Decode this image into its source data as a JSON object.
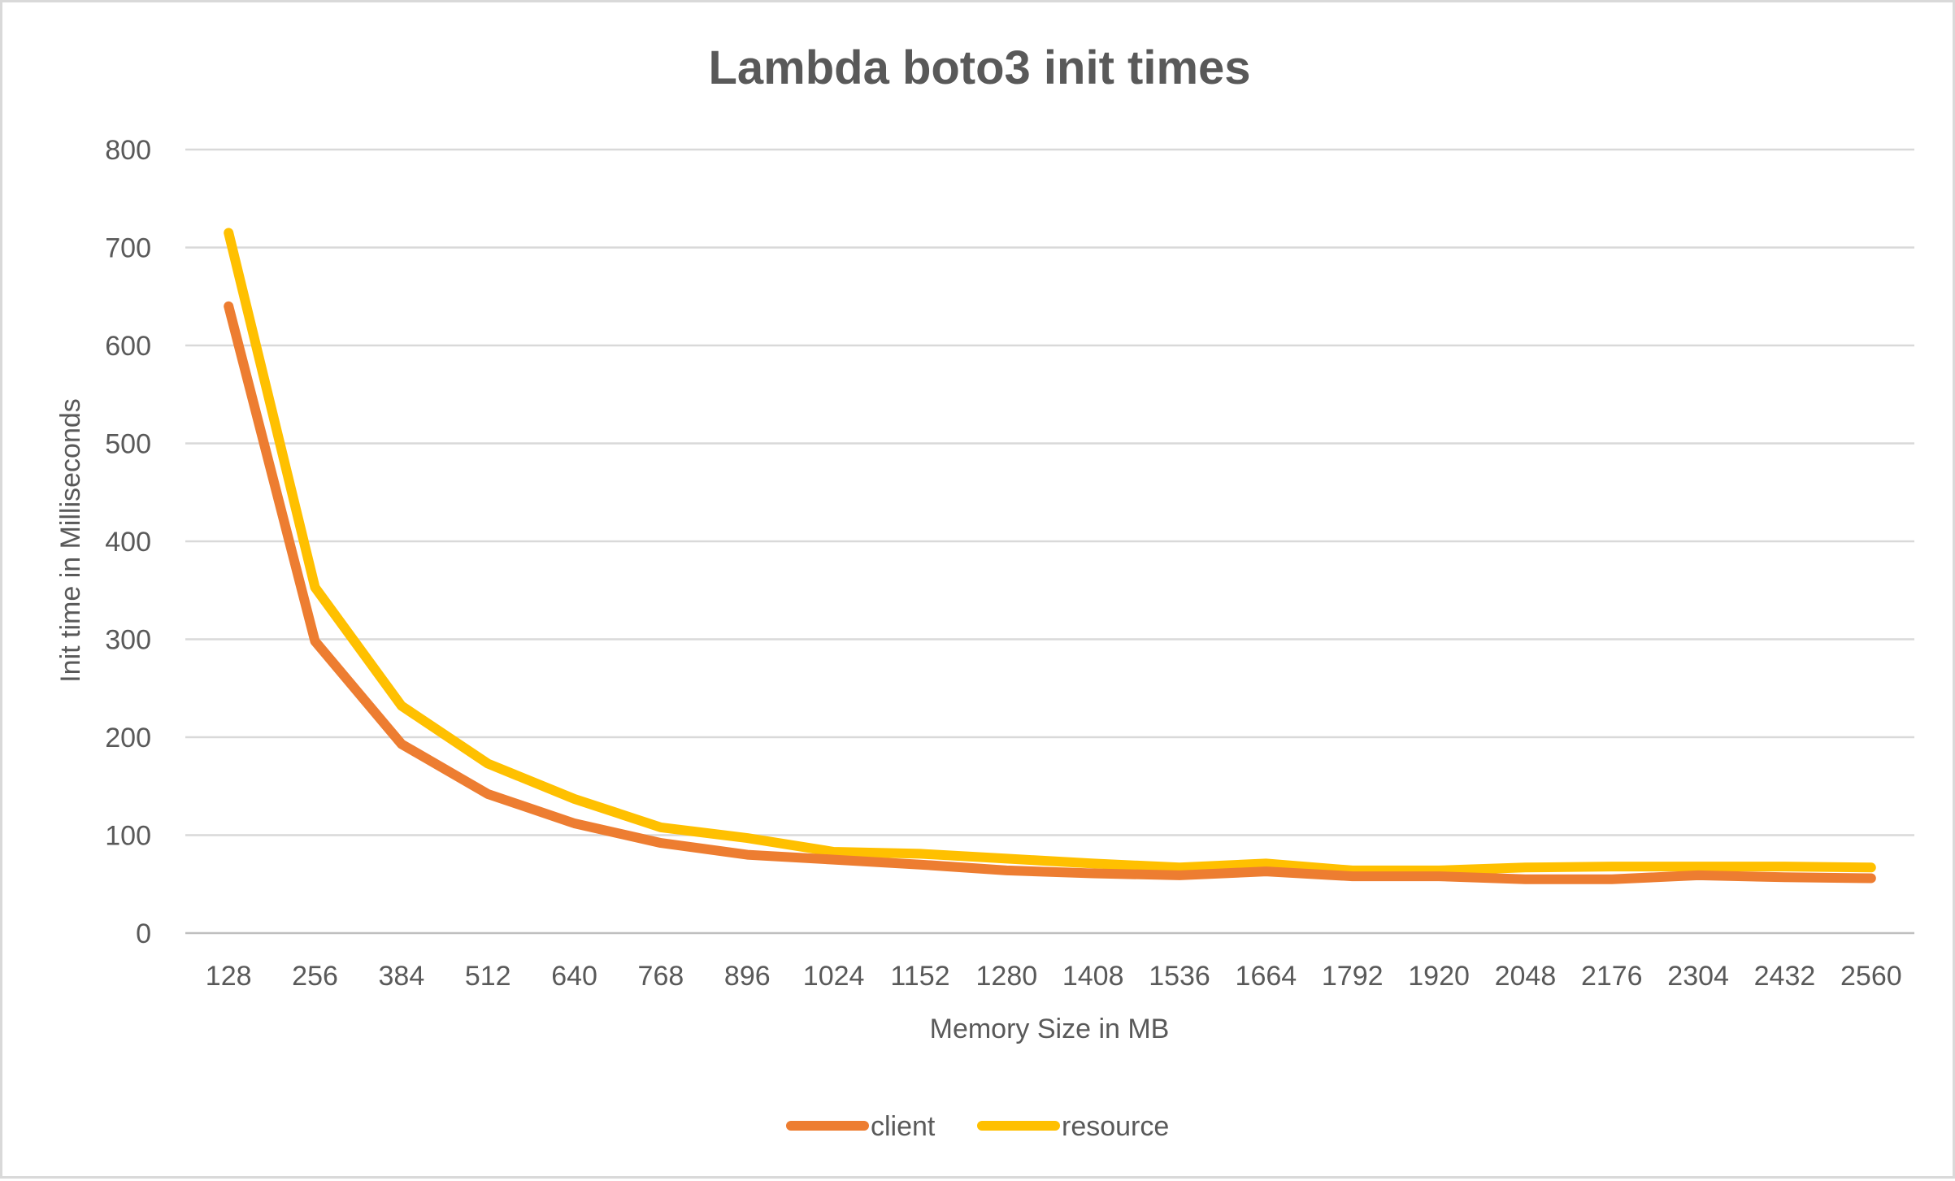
{
  "chart_data": {
    "type": "line",
    "title": "Lambda boto3 init times",
    "xlabel": "Memory Size in MB",
    "ylabel": "Init time in Milliseconds",
    "categories": [
      "128",
      "256",
      "384",
      "512",
      "640",
      "768",
      "896",
      "1024",
      "1152",
      "1280",
      "1408",
      "1536",
      "1664",
      "1792",
      "1920",
      "2048",
      "2176",
      "2304",
      "2432",
      "2560"
    ],
    "ylim": [
      0,
      800
    ],
    "yticks": [
      0,
      100,
      200,
      300,
      400,
      500,
      600,
      700,
      800
    ],
    "grid": true,
    "legend_position": "bottom",
    "series": [
      {
        "name": "client",
        "color": "#ED7D31",
        "values": [
          640,
          298,
          193,
          142,
          112,
          92,
          80,
          75,
          70,
          64,
          61,
          59,
          63,
          58,
          58,
          55,
          55,
          59,
          57,
          56
        ]
      },
      {
        "name": "resource",
        "color": "#FFC000",
        "values": [
          715,
          353,
          232,
          173,
          137,
          108,
          97,
          83,
          81,
          76,
          71,
          67,
          71,
          64,
          64,
          67,
          68,
          68,
          68,
          67
        ]
      }
    ]
  }
}
